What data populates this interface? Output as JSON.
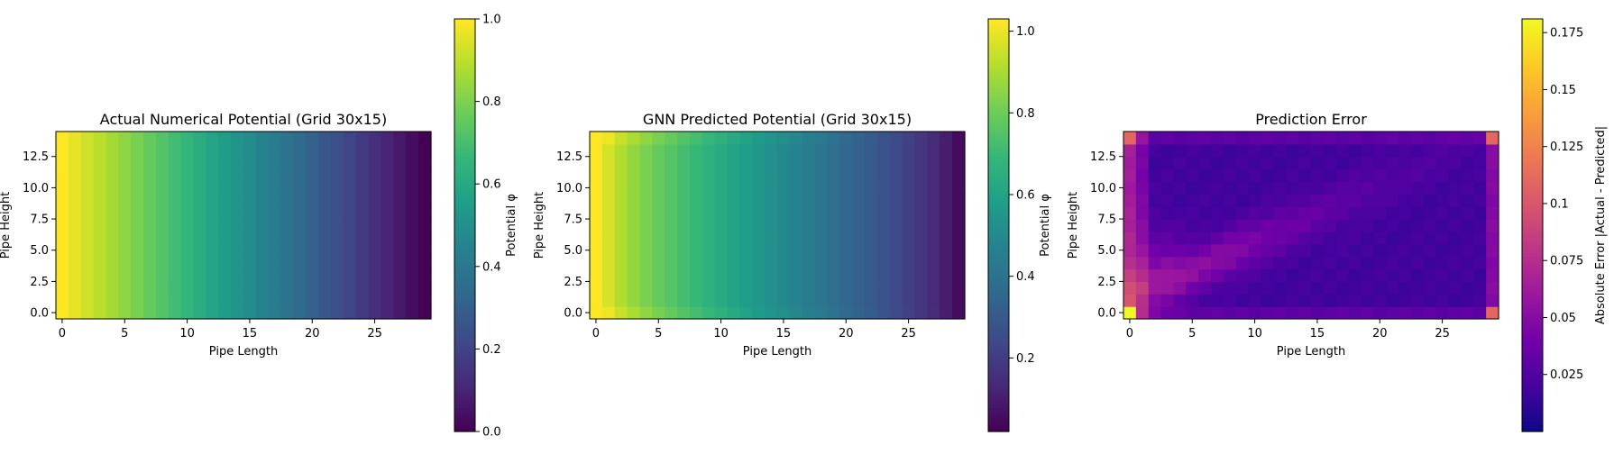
{
  "chart_data": [
    {
      "type": "heatmap",
      "title": "Actual Numerical Potential (Grid 30x15)",
      "xlabel": "Pipe Length",
      "ylabel": "Pipe Height",
      "xlim": [
        -0.5,
        29.5
      ],
      "ylim": [
        -0.5,
        14.5
      ],
      "xticks": [
        0,
        5,
        10,
        15,
        20,
        25
      ],
      "yticks": [
        0.0,
        2.5,
        5.0,
        7.5,
        10.0,
        12.5
      ],
      "colormap": "viridis",
      "colorbar": {
        "label": "Potential φ",
        "range": [
          0.0,
          1.0
        ],
        "ticks": [
          0.0,
          0.2,
          0.4,
          0.6,
          0.8,
          1.0
        ]
      },
      "grid_size": [
        30,
        15
      ],
      "model": "actual",
      "grid": false
    },
    {
      "type": "heatmap",
      "title": "GNN Predicted Potential (Grid 30x15)",
      "xlabel": "Pipe Length",
      "ylabel": "Pipe Height",
      "xlim": [
        -0.5,
        29.5
      ],
      "ylim": [
        -0.5,
        14.5
      ],
      "xticks": [
        0,
        5,
        10,
        15,
        20,
        25
      ],
      "yticks": [
        0.0,
        2.5,
        5.0,
        7.5,
        10.0,
        12.5
      ],
      "colormap": "viridis",
      "colorbar": {
        "label": "Potential φ",
        "range": [
          0.02,
          1.03
        ],
        "ticks": [
          0.2,
          0.4,
          0.6,
          0.8,
          1.0
        ]
      },
      "grid_size": [
        30,
        15
      ],
      "model": "predicted",
      "grid": false
    },
    {
      "type": "heatmap",
      "title": "Prediction Error",
      "xlabel": "Pipe Length",
      "ylabel": "Pipe Height",
      "xlim": [
        -0.5,
        29.5
      ],
      "ylim": [
        -0.5,
        14.5
      ],
      "xticks": [
        0,
        5,
        10,
        15,
        20,
        25
      ],
      "yticks": [
        0.0,
        2.5,
        5.0,
        7.5,
        10.0,
        12.5
      ],
      "colormap": "plasma",
      "colorbar": {
        "label": "Absolute Error |Actual - Predicted|",
        "range": [
          0.0,
          0.181
        ],
        "ticks": [
          0.025,
          0.05,
          0.075,
          0.1,
          0.125,
          0.15,
          0.175
        ]
      },
      "grid_size": [
        30,
        15
      ],
      "model": "error",
      "grid": false
    }
  ]
}
